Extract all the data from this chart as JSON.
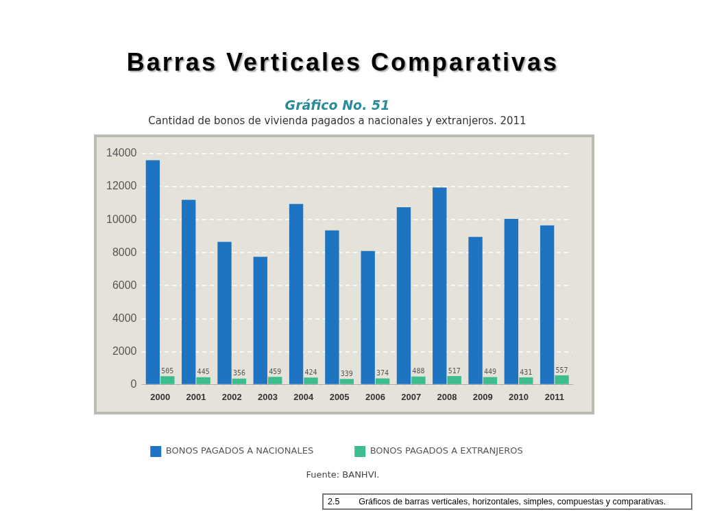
{
  "chart_data": {
    "type": "bar",
    "title": "Barras Verticales Comparativas",
    "subtitle": "Cantidad de bonos de vivienda pagados a nacionales y extranjeros. 2011",
    "categories": [
      "2000",
      "2001",
      "2002",
      "2003",
      "2004",
      "2005",
      "2006",
      "2007",
      "2008",
      "2009",
      "2010",
      "2011"
    ],
    "series": [
      {
        "name": "BONOS PAGADOS A NACIONALES",
        "color": "#1f74c2",
        "values": [
          13600,
          11200,
          8650,
          7750,
          10950,
          9350,
          8100,
          10750,
          11950,
          8950,
          10050,
          9650
        ]
      },
      {
        "name": "BONOS PAGADOS A EXTRANJEROS",
        "color": "#3dbd8e",
        "values": [
          505,
          445,
          356,
          459,
          424,
          339,
          374,
          488,
          517,
          449,
          431,
          557
        ],
        "value_labels": [
          "505",
          "445",
          "356",
          "459",
          "424",
          "339",
          "374",
          "488",
          "517",
          "449",
          "431",
          "557"
        ]
      }
    ],
    "ylim": [
      0,
      14000
    ],
    "yticks": [
      0,
      2000,
      4000,
      6000,
      8000,
      10000,
      12000,
      14000
    ],
    "grid": "y",
    "legend": "bottom",
    "annotations": [
      "Gráfico No. 51",
      "Fuente: BANHVI.",
      "2.5        Gráficos de barras verticales, horizontales, simples, compuestas y comparativas."
    ]
  }
}
